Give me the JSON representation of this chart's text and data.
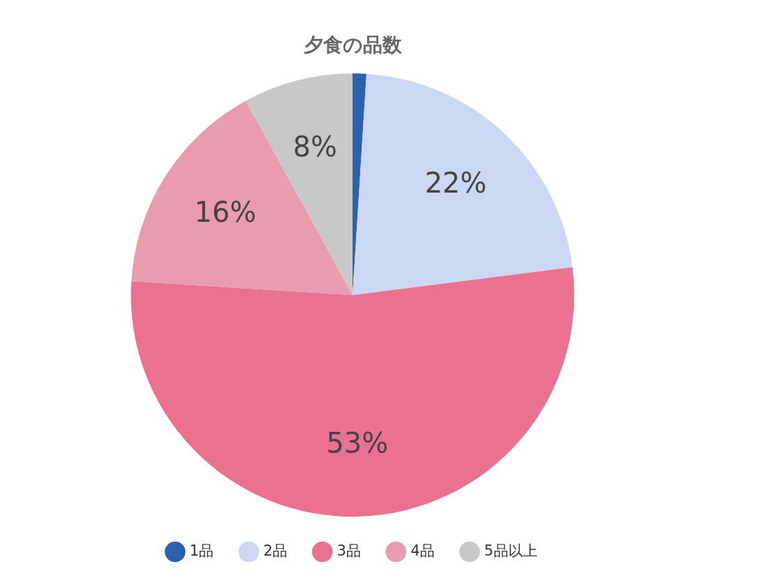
{
  "chart_data": {
    "type": "pie",
    "title": "夕食の品数",
    "categories": [
      "1品",
      "2品",
      "3品",
      "4品",
      "5品以上"
    ],
    "values": [
      1,
      22,
      53,
      16,
      8
    ],
    "colors": [
      "#2b62b0",
      "#cbd8f4",
      "#ea7190",
      "#e99bb0",
      "#c8c8c8"
    ],
    "value_labels": [
      null,
      "22%",
      "53%",
      "16%",
      "8%"
    ],
    "legend": "bottom"
  }
}
